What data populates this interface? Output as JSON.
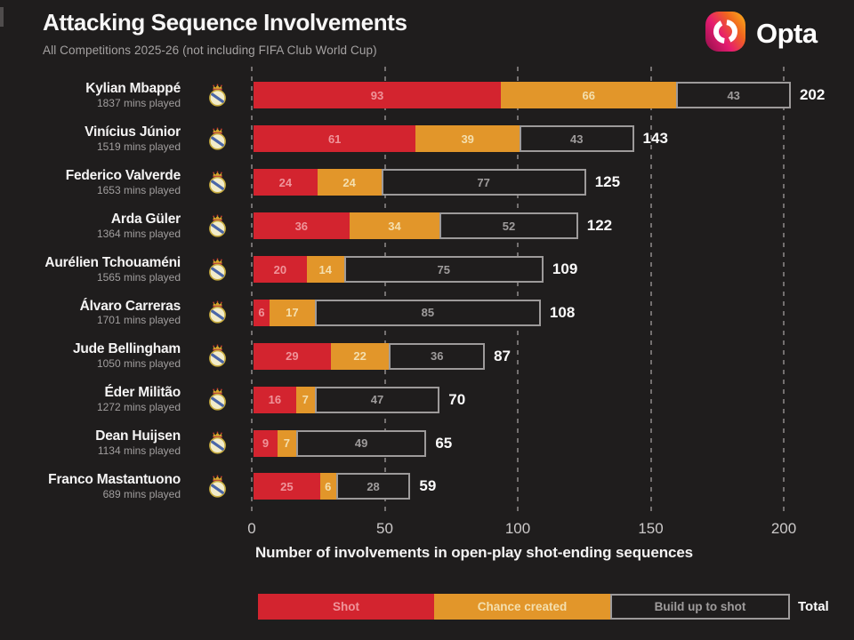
{
  "header": {
    "title": "Attacking Sequence Involvements",
    "subtitle": "All Competitions 2025-26 (not including FIFA Club World Cup)",
    "brand": "Opta"
  },
  "icons": {
    "brand_logo": "opta-logo",
    "team_badge": "real-madrid-crest"
  },
  "colors": {
    "background": "#1f1d1d",
    "shot": "#d3242f",
    "chance_created": "#e2962a",
    "build_up_border": "#9d9a9a",
    "grid": "#747070",
    "text_primary": "#f5f4f4",
    "text_muted": "#a19e9e",
    "shot_label": "#ef949a",
    "chance_label": "#f4dfae",
    "build_label": "#9f9c9c",
    "opta_gradient_start": "#c41370",
    "opta_gradient_end": "#f89e1b"
  },
  "chart_data": {
    "type": "bar",
    "orientation": "horizontal",
    "stacked": true,
    "grid": "dashed-vertical",
    "legend_position": "bottom",
    "xlabel": "Number of involvements in open-play shot-ending sequences",
    "xlim": [
      0,
      200
    ],
    "xticks": [
      0,
      50,
      100,
      150,
      200
    ],
    "categories": [
      "Kylian Mbappé",
      "Vinícius Júnior",
      "Federico Valverde",
      "Arda Güler",
      "Aurélien Tchouaméni",
      "Álvaro Carreras",
      "Jude Bellingham",
      "Éder Militão",
      "Dean Huijsen",
      "Franco Mastantuono"
    ],
    "category_sublabels": [
      "1837 mins played",
      "1519 mins played",
      "1653 mins played",
      "1364 mins played",
      "1565 mins played",
      "1701 mins played",
      "1050 mins played",
      "1272 mins played",
      "1134 mins played",
      "689 mins played"
    ],
    "series": [
      {
        "name": "Shot",
        "color": "#d3242f",
        "values": [
          93,
          61,
          24,
          36,
          20,
          6,
          29,
          16,
          9,
          25
        ]
      },
      {
        "name": "Chance created",
        "color": "#e2962a",
        "values": [
          66,
          39,
          24,
          34,
          14,
          17,
          22,
          7,
          7,
          6
        ]
      },
      {
        "name": "Build up to shot",
        "color": "outline",
        "values": [
          43,
          43,
          77,
          52,
          75,
          85,
          36,
          47,
          49,
          28
        ]
      }
    ],
    "totals": [
      202,
      143,
      125,
      122,
      109,
      108,
      87,
      70,
      65,
      59
    ]
  },
  "legend": {
    "total_label": "Total"
  }
}
